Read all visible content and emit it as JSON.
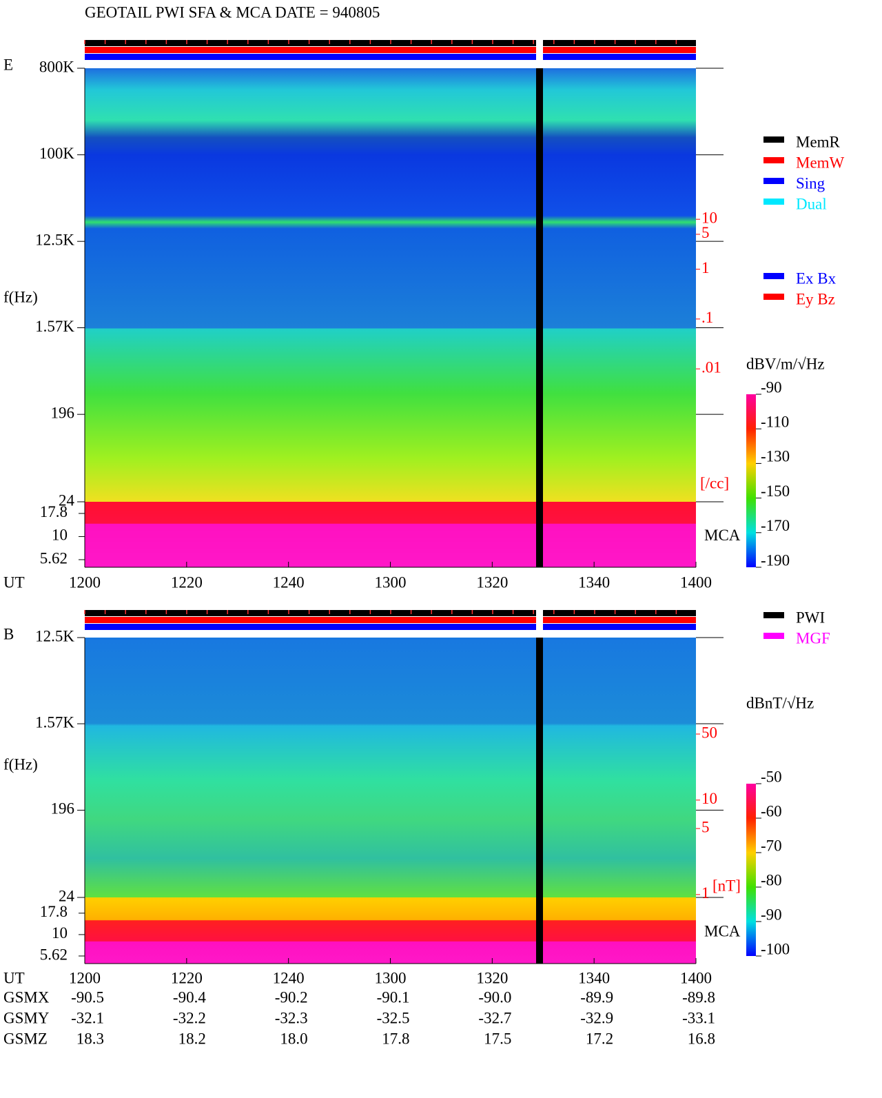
{
  "chart_data": [
    {
      "type": "spectrogram",
      "title": "GEOTAIL  PWI SFA & MCA   DATE = 940805",
      "panel_label": "E",
      "ylabel": "f(Hz)",
      "xlabel": "UT",
      "log_y": true,
      "ylim": [
        800000,
        24
      ],
      "yticks": [
        {
          "value": 800000,
          "label": "800K"
        },
        {
          "value": 100000,
          "label": "100K"
        },
        {
          "value": 12500,
          "label": "12.5K"
        },
        {
          "value": 1570,
          "label": "1.57K"
        },
        196,
        24
      ],
      "mca_label": "MCA",
      "mca_ylim": [
        23.8,
        4.65
      ],
      "mca_yticks": [
        17.8,
        10,
        5.62
      ],
      "x_labels": [
        "1200",
        "1220",
        "1240",
        "1300",
        "1320",
        "1340",
        "1400"
      ],
      "y2label": "[/cc]",
      "y2lim": [
        10700,
        1.05e-06
      ],
      "y2ticks": [
        10,
        5,
        1,
        {
          "value": 0.1,
          "label": ".1"
        },
        {
          "value": 0.01,
          "label": ".01"
        }
      ],
      "colorbar": {
        "label": "dBV/m/√Hz",
        "lim": [
          -90,
          -190
        ],
        "ticks": [
          -90,
          -110,
          -130,
          -150,
          -170,
          -190
        ]
      },
      "legends": [
        [
          {
            "name": "MemR",
            "color": "#000000"
          },
          {
            "name": "MemW",
            "color": "#ff0000"
          },
          {
            "name": "Sing",
            "color": "#0000ff"
          },
          {
            "name": "Dual",
            "color": "#00e8ff"
          }
        ],
        [
          {
            "name": "Ex Bx",
            "color": "#0000ff"
          },
          {
            "name": "Ey Bz",
            "color": "#ff0000"
          }
        ]
      ]
    },
    {
      "type": "spectrogram",
      "panel_label": "B",
      "ylabel": "f(Hz)",
      "xlabel": "UT",
      "log_y": true,
      "ylim": [
        12500,
        24
      ],
      "yticks": [
        {
          "value": 12500,
          "label": "12.5K"
        },
        {
          "value": 1570,
          "label": "1.57K"
        },
        196,
        24
      ],
      "mca_label": "MCA",
      "mca_ylim": [
        27.2,
        4.58
      ],
      "mca_yticks": [
        17.8,
        10,
        5.62
      ],
      "x_labels": [
        "1200",
        "1220",
        "1240",
        "1300",
        "1320",
        "1340",
        "1400"
      ],
      "y2label": "[nT]",
      "y2lim": [
        525,
        0.186
      ],
      "y2ticks": [
        50,
        10,
        5,
        1
      ],
      "colorbar": {
        "label": "dBnT/√Hz",
        "lim": [
          -50,
          -100
        ],
        "ticks": [
          -50,
          -60,
          -70,
          -80,
          -90,
          -100
        ]
      },
      "legends": [
        [
          {
            "name": "PWI",
            "color": "#000000"
          },
          {
            "name": "MGF",
            "color": "#ff00ff"
          }
        ]
      ]
    }
  ],
  "orbit": {
    "rows": [
      {
        "label": "GSMX",
        "values": [
          "-90.5",
          "-90.4",
          "-90.2",
          "-90.1",
          "-90.0",
          "-89.9",
          "-89.8"
        ]
      },
      {
        "label": "GSMY",
        "values": [
          "-32.1",
          "-32.2",
          "-32.3",
          "-32.5",
          "-32.7",
          "-32.9",
          "-33.1"
        ]
      },
      {
        "label": "GSMZ",
        "values": [
          "18.3",
          "18.2",
          "18.0",
          "17.8",
          "17.5",
          "17.2",
          "16.8"
        ]
      }
    ]
  }
}
